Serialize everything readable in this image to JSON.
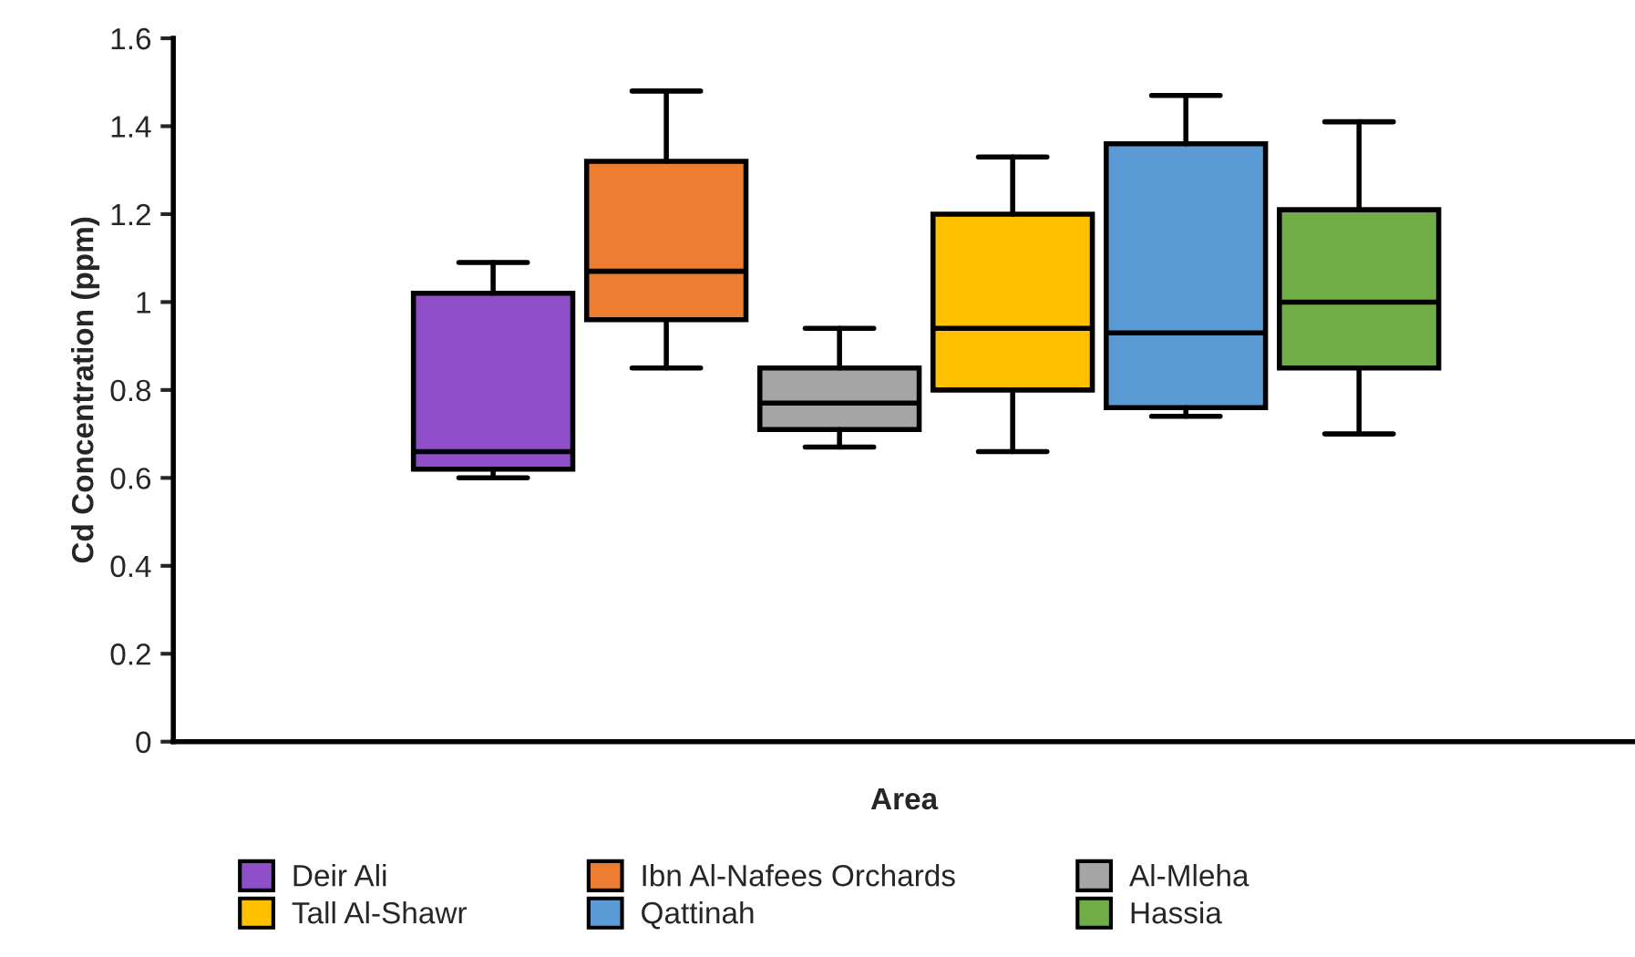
{
  "chart_data": {
    "type": "box",
    "xlabel": "Area",
    "ylabel": "Cd Concentration (ppm)",
    "categories": [
      null
    ],
    "ylim": [
      0,
      1.6
    ],
    "yticks": [
      0,
      0.2,
      0.4,
      0.6,
      0.8,
      1,
      1.2,
      1.4,
      1.6
    ],
    "tick_labels": "y",
    "grid": false,
    "legend": "bottom",
    "series": [
      {
        "name": "Deir Ali",
        "color": "#8e4fc9",
        "boxes": [
          {
            "low": 0.6,
            "q1": 0.62,
            "median": 0.66,
            "q3": 1.02,
            "high": 1.09
          }
        ]
      },
      {
        "name": "Ibn Al-Nafees Orchards",
        "color": "#ed7d31",
        "boxes": [
          {
            "low": 0.85,
            "q1": 0.96,
            "median": 1.07,
            "q3": 1.32,
            "high": 1.48
          }
        ]
      },
      {
        "name": "Al-Mleha",
        "color": "#a5a5a5",
        "boxes": [
          {
            "low": 0.67,
            "q1": 0.71,
            "median": 0.77,
            "q3": 0.85,
            "high": 0.94
          }
        ]
      },
      {
        "name": "Tall Al-Shawr",
        "color": "#ffc000",
        "boxes": [
          {
            "low": 0.66,
            "q1": 0.8,
            "median": 0.94,
            "q3": 1.2,
            "high": 1.33
          }
        ]
      },
      {
        "name": "Qattinah",
        "color": "#5b9bd5",
        "boxes": [
          {
            "low": 0.74,
            "q1": 0.76,
            "median": 0.93,
            "q3": 1.36,
            "high": 1.47
          }
        ]
      },
      {
        "name": "Hassia",
        "color": "#70ad47",
        "boxes": [
          {
            "low": 0.7,
            "q1": 0.85,
            "median": 1.0,
            "q3": 1.21,
            "high": 1.41
          }
        ]
      }
    ]
  }
}
